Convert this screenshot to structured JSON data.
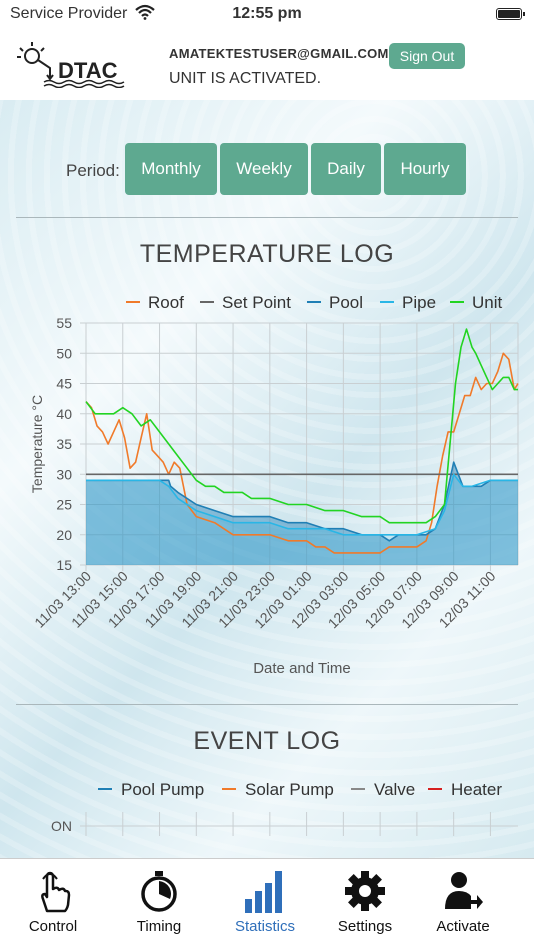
{
  "status_bar": {
    "carrier": "Service Provider",
    "time": "12:55 pm"
  },
  "header": {
    "logo_text": "DTAC",
    "email": "AMATEKTESTUSER@GMAIL.COM",
    "unit_status": "UNIT IS ACTIVATED.",
    "sign_out_label": "Sign Out"
  },
  "period": {
    "label": "Period:",
    "options": [
      "Monthly",
      "Weekly",
      "Daily",
      "Hourly"
    ]
  },
  "colors": {
    "accent": "#5ea990",
    "roof": "#f07a2a",
    "set_point": "#666666",
    "pool": "#1f7fb5",
    "pipe": "#29b6e6",
    "unit": "#22d422",
    "solar_pump": "#f07a2a",
    "valve": "#888888",
    "heater": "#d62020",
    "active_tab": "#2f6fba"
  },
  "temperature_log": {
    "title": "TEMPERATURE LOG",
    "chart_data": {
      "type": "line",
      "ylabel": "Temperature °C",
      "xlabel": "Date and Time",
      "ylim": [
        15,
        55
      ],
      "yticks": [
        15,
        20,
        25,
        30,
        35,
        40,
        45,
        50,
        55
      ],
      "x_tick_labels": [
        "11/03 13:00",
        "11/03 15:00",
        "11/03 17:00",
        "11/03 19:00",
        "11/03 21:00",
        "11/03 23:00",
        "12/03 01:00",
        "12/03 03:00",
        "12/03 05:00",
        "12/03 07:00",
        "12/03 09:00",
        "12/03 11:00"
      ],
      "x_range_hours": [
        0,
        23.5
      ],
      "legend_position": "top",
      "grid": true,
      "series": [
        {
          "name": "Roof",
          "color_key": "roof",
          "fill": false,
          "x": [
            0,
            0.3,
            0.6,
            0.9,
            1.2,
            1.5,
            1.8,
            2.1,
            2.4,
            2.7,
            3,
            3.3,
            3.6,
            3.9,
            4.2,
            4.5,
            4.8,
            5.1,
            5.5,
            6,
            7,
            8,
            9,
            10,
            11,
            11.5,
            12,
            12.5,
            13,
            13.5,
            14,
            14.5,
            15,
            15.5,
            16,
            16.5,
            17,
            17.5,
            18,
            18.5,
            18.8,
            19.1,
            19.4,
            19.7,
            20,
            20.3,
            20.6,
            20.9,
            21.2,
            21.5,
            21.8,
            22.1,
            22.4,
            22.7,
            23,
            23.3,
            23.5
          ],
          "y": [
            42,
            41,
            38,
            37,
            35,
            37,
            39,
            36,
            31,
            32,
            36,
            40,
            34,
            33,
            32,
            30,
            32,
            31,
            25,
            23,
            22,
            20,
            20,
            20,
            19,
            19,
            19,
            18,
            18,
            17,
            17,
            17,
            17,
            17,
            17,
            18,
            18,
            18,
            18,
            19,
            22,
            28,
            33,
            37,
            37,
            40,
            43,
            43,
            46,
            44,
            45,
            45,
            47,
            50,
            49,
            44,
            45
          ]
        },
        {
          "name": "Set Point",
          "color_key": "set_point",
          "fill": false,
          "x": [
            0,
            23.5
          ],
          "y": [
            30,
            30
          ]
        },
        {
          "name": "Pool",
          "color_key": "pool",
          "fill": true,
          "x": [
            0,
            1,
            2,
            3,
            4,
            4.5,
            4.6,
            5,
            6,
            7,
            8,
            9,
            10,
            11,
            12,
            13,
            14,
            15,
            16,
            16.5,
            17,
            18,
            18.5,
            19,
            19.5,
            20,
            20.5,
            21,
            21.5,
            22,
            23,
            23.5
          ],
          "y": [
            29,
            29,
            29,
            29,
            29,
            29,
            28,
            27,
            25,
            24,
            23,
            23,
            23,
            22,
            22,
            21,
            21,
            20,
            20,
            19,
            20,
            20,
            20,
            21,
            25,
            32,
            28,
            28,
            28,
            29,
            29,
            29
          ]
        },
        {
          "name": "Pipe",
          "color_key": "pipe",
          "fill": true,
          "x": [
            0,
            1,
            2,
            3,
            4,
            4.5,
            5,
            6,
            7,
            8,
            9,
            10,
            11,
            12,
            13,
            14,
            15,
            16,
            17,
            18,
            19,
            19.5,
            20,
            20.5,
            21,
            22,
            23,
            23.5
          ],
          "y": [
            29,
            29,
            29,
            29,
            29,
            28,
            26,
            24,
            23,
            22,
            22,
            22,
            21,
            21,
            21,
            20,
            20,
            20,
            20,
            20,
            21,
            24,
            30,
            28,
            28,
            29,
            29,
            29
          ]
        },
        {
          "name": "Unit",
          "color_key": "unit",
          "fill": false,
          "x": [
            0,
            0.5,
            1,
            1.5,
            2,
            2.5,
            3,
            3.5,
            4,
            4.5,
            5,
            5.5,
            6,
            6.5,
            7,
            7.5,
            8,
            8.5,
            9,
            9.5,
            10,
            11,
            11.5,
            12,
            13,
            14,
            15,
            15.5,
            16,
            16.5,
            17,
            17.5,
            18,
            18.5,
            19,
            19.5,
            19.8,
            20.1,
            20.4,
            20.7,
            21,
            21.2,
            21.5,
            21.8,
            22.1,
            22.4,
            22.7,
            23,
            23.3,
            23.5
          ],
          "y": [
            42,
            40,
            40,
            40,
            41,
            40,
            38,
            39,
            37,
            35,
            33,
            31,
            29,
            28,
            28,
            27,
            27,
            27,
            26,
            26,
            26,
            25,
            25,
            25,
            24,
            24,
            23,
            23,
            23,
            22,
            22,
            22,
            22,
            22,
            23,
            25,
            35,
            45,
            51,
            54,
            51,
            50,
            48,
            46,
            44,
            45,
            46,
            46,
            44,
            44
          ]
        }
      ]
    }
  },
  "event_log": {
    "title": "EVENT LOG",
    "chart_data": {
      "type": "line",
      "y_tick_labels": [
        "ON"
      ],
      "legend_position": "top",
      "grid": true,
      "series": [
        {
          "name": "Pool Pump",
          "color_key": "pool"
        },
        {
          "name": "Solar Pump",
          "color_key": "solar_pump"
        },
        {
          "name": "Valve",
          "color_key": "valve"
        },
        {
          "name": "Heater",
          "color_key": "heater"
        }
      ]
    }
  },
  "tabs": [
    {
      "label": "Control",
      "icon": "hand-pointer-icon",
      "active": false
    },
    {
      "label": "Timing",
      "icon": "stopwatch-icon",
      "active": false
    },
    {
      "label": "Statistics",
      "icon": "bar-chart-icon",
      "active": true
    },
    {
      "label": "Settings",
      "icon": "gear-icon",
      "active": false
    },
    {
      "label": "Activate",
      "icon": "user-plus-icon",
      "active": false
    }
  ]
}
